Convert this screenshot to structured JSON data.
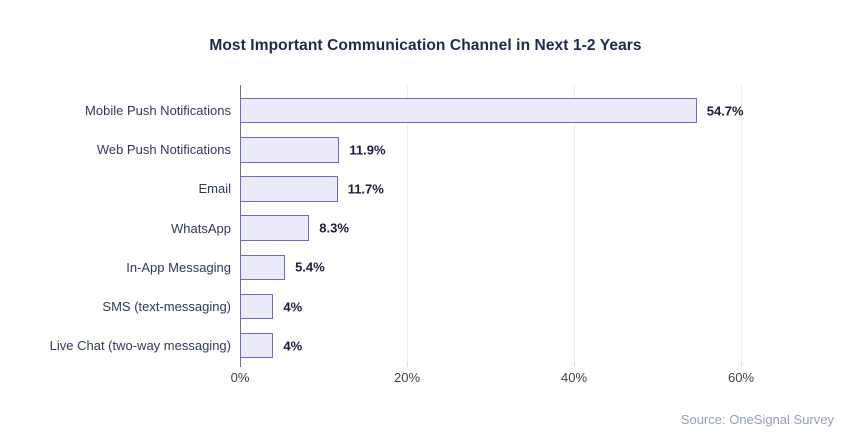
{
  "title": "Most Important Communication Channel in Next 1-2 Years",
  "source": "Source: OneSignal Survey",
  "chart_data": {
    "type": "bar",
    "orientation": "horizontal",
    "title": "Most Important Communication Channel in Next 1-2 Years",
    "categories": [
      "Mobile Push Notifications",
      "Web Push Notifications",
      "Email",
      "WhatsApp",
      "In-App Messaging",
      "SMS (text-messaging)",
      "Live Chat (two-way messaging)"
    ],
    "values": [
      54.7,
      11.9,
      11.7,
      8.3,
      5.4,
      4,
      4
    ],
    "value_labels": [
      "54.7%",
      "11.9%",
      "11.7%",
      "8.3%",
      "5.4%",
      "4%",
      "4%"
    ],
    "xlabel": "",
    "ylabel": "",
    "x_tick_values": [
      0,
      20,
      40,
      60
    ],
    "x_tick_labels": [
      "0%",
      "20%",
      "40%",
      "60%"
    ],
    "xlim": [
      0,
      70.8
    ],
    "grid": "vertical-light",
    "legend": "none",
    "annotation": "Source: OneSignal Survey",
    "colors": {
      "bar_fill": "#EBEBFA",
      "bar_border": "#6A6AC4",
      "title_text": "#1A2B4E",
      "category_text": "#2E3A59",
      "value_text": "#161E38",
      "axis_line": "#6B7280",
      "gridline": "#ECECF2",
      "light_tick": "#DDDDE6",
      "tick_label_text": "#3C4356",
      "source_text": "#94A0B4"
    }
  }
}
